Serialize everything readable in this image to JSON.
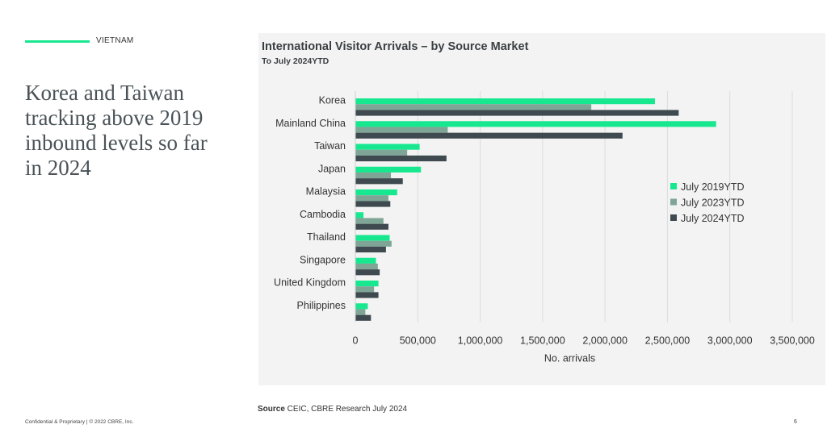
{
  "section": {
    "label": "VIETNAM"
  },
  "headline": "Korea and Taiwan tracking above 2019 inbound levels so far in 2024",
  "source": {
    "label": "Source",
    "text": " CEIC, CBRE Research July 2024"
  },
  "footer": {
    "text": "Confidential & Proprietary | © 2022 CBRE, Inc.",
    "page": "6"
  },
  "colors": {
    "accent": "#17e88f",
    "series": [
      "#17e88f",
      "#7fa597",
      "#3e4a4f"
    ]
  },
  "chart_data": {
    "type": "bar",
    "orientation": "horizontal",
    "title": "International Visitor Arrivals – by Source Market",
    "subtitle": "To July 2024YTD",
    "xlabel": "No. arrivals",
    "ylabel": "",
    "xlim": [
      0,
      3500000
    ],
    "xticks": [
      0,
      500000,
      1000000,
      1500000,
      2000000,
      2500000,
      3000000,
      3500000
    ],
    "xtick_labels": [
      "0",
      "500,000",
      "1,000,000",
      "1,500,000",
      "2,000,000",
      "2,500,000",
      "3,000,000",
      "3,500,000"
    ],
    "grid": "vertical",
    "legend_position": "right",
    "categories": [
      "Korea",
      "Mainland China",
      "Taiwan",
      "Japan",
      "Malaysia",
      "Cambodia",
      "Thailand",
      "Singapore",
      "United Kingdom",
      "Philippines"
    ],
    "series": [
      {
        "name": "July 2019YTD",
        "color": "#17e88f",
        "values": [
          2400000,
          2890000,
          515000,
          525000,
          335000,
          65000,
          275000,
          165000,
          185000,
          100000
        ]
      },
      {
        "name": "July 2023YTD",
        "color": "#7fa597",
        "values": [
          1890000,
          740000,
          415000,
          285000,
          265000,
          225000,
          290000,
          180000,
          150000,
          80000
        ]
      },
      {
        "name": "July 2024YTD",
        "color": "#3e4a4f",
        "values": [
          2590000,
          2140000,
          730000,
          380000,
          280000,
          265000,
          245000,
          195000,
          185000,
          125000
        ]
      }
    ]
  }
}
